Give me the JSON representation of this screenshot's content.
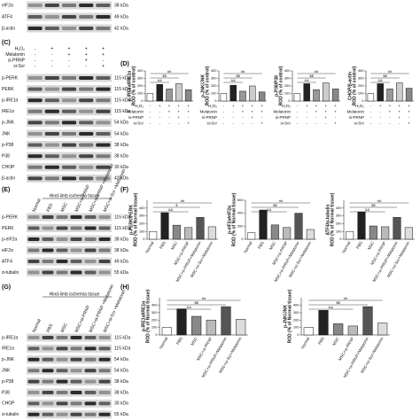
{
  "top_blot": {
    "rows": [
      {
        "name": "eIF2α",
        "kda": "38 kDa"
      },
      {
        "name": "ATF4",
        "kda": "49 kDa"
      },
      {
        "name": "β-actin",
        "kda": "42 kDa"
      }
    ]
  },
  "panel_c": {
    "label": "(C)",
    "header": [
      "H₂O₂",
      "Melatonin",
      "si-PRNP",
      "si-Scr"
    ],
    "signs": [
      [
        "-",
        "+",
        "+",
        "+",
        "+"
      ],
      [
        "-",
        "-",
        "+",
        "+",
        "+"
      ],
      [
        "-",
        "-",
        "-",
        "+",
        "-"
      ],
      [
        "-",
        "-",
        "-",
        "-",
        "+"
      ]
    ],
    "rows": [
      {
        "name": "p-PERK",
        "kda": "115 kDa"
      },
      {
        "name": "PERK",
        "kda": "115 kDa"
      },
      {
        "name": "p-IRE1α",
        "kda": "115 kDa"
      },
      {
        "name": "IRE1α",
        "kda": "115 kDa"
      },
      {
        "name": "p-JNK",
        "kda": "54 kDa"
      },
      {
        "name": "JNK",
        "kda": "54 kDa"
      },
      {
        "name": "p-P38",
        "kda": "38 kDa"
      },
      {
        "name": "P38",
        "kda": "38 kDa"
      },
      {
        "name": "CHOP",
        "kda": "30 kDa"
      },
      {
        "name": "β-actin",
        "kda": "42 kDa"
      }
    ]
  },
  "panel_d": {
    "label": "(D)"
  },
  "panel_e": {
    "label": "(E)",
    "tissue": "Hind-limb ischemia tissue",
    "columns": [
      "Normal",
      "PBS",
      "MSC",
      "MSC+si-PRNP",
      "MSC+si-PRNP +Melatonin",
      "MSC+si-Scr +Melatonin"
    ],
    "rows": [
      {
        "name": "p-PERK",
        "kda": "115 kDa"
      },
      {
        "name": "PERK",
        "kda": "115 kDa"
      },
      {
        "name": "p-eIF2α",
        "kda": "38 kDa"
      },
      {
        "name": "eIF2α",
        "kda": "38 kDa"
      },
      {
        "name": "ATF4",
        "kda": "49 kDa"
      },
      {
        "name": "α-tubulin",
        "kda": "55 kDa"
      }
    ]
  },
  "panel_f": {
    "label": "(F)"
  },
  "panel_g": {
    "label": "(G)",
    "tissue": "Hind-limb ischemia tissue",
    "columns": [
      "Normal",
      "PBS",
      "MSC",
      "MSC+si-PRNP",
      "MSC+si-PRNP +Melatonin",
      "MSC+si-Scr +Melatonin"
    ],
    "rows": [
      {
        "name": "p-IRE1α",
        "kda": "115 kDa"
      },
      {
        "name": "IRE1α",
        "kda": "115 kDa"
      },
      {
        "name": "p-JNK",
        "kda": "54 kDa"
      },
      {
        "name": "JNK",
        "kda": "54 kDa"
      },
      {
        "name": "p-P38",
        "kda": "38 kDa"
      },
      {
        "name": "P38",
        "kda": "38 kDa"
      },
      {
        "name": "CHOP",
        "kda": "30 kDa"
      },
      {
        "name": "α-tubulin",
        "kda": "55 kDa"
      }
    ]
  },
  "panel_h": {
    "label": "(H)"
  },
  "chart_data": [
    {
      "type": "bar",
      "ylabel": [
        "p-IRE1α/IRE1α",
        "ROD (% of control)"
      ],
      "categories": [
        null,
        null,
        null,
        null,
        null
      ],
      "values": [
        100,
        220,
        160,
        230,
        150
      ],
      "colors": [
        "#ffffff",
        "#222222",
        "#999999",
        "#cccccc",
        "#888888"
      ],
      "ylim": [
        0,
        400
      ],
      "yticks": [
        0,
        100,
        200,
        300,
        400
      ],
      "annotations": [
        "##",
        "$$",
        "&&"
      ]
    },
    {
      "type": "bar",
      "ylabel": [
        "p-JNK/JNK",
        "ROD (% of control)"
      ],
      "categories": [
        null,
        null,
        null,
        null,
        null
      ],
      "values": [
        100,
        210,
        130,
        200,
        120
      ],
      "colors": [
        "#ffffff",
        "#222222",
        "#999999",
        "#cccccc",
        "#888888"
      ],
      "ylim": [
        0,
        400
      ],
      "yticks": [
        0,
        100,
        200,
        300,
        400
      ],
      "annotations": [
        "##",
        "$$",
        "&&"
      ]
    },
    {
      "type": "bar",
      "ylabel": [
        "p-P38/P38",
        "ROD (% of control)"
      ],
      "categories": [
        null,
        null,
        null,
        null,
        null
      ],
      "values": [
        100,
        230,
        150,
        240,
        160
      ],
      "colors": [
        "#ffffff",
        "#222222",
        "#999999",
        "#cccccc",
        "#888888"
      ],
      "ylim": [
        0,
        400
      ],
      "yticks": [
        0,
        100,
        200,
        300,
        400
      ],
      "annotations": [
        "##",
        "$$",
        "&&"
      ]
    },
    {
      "type": "bar",
      "ylabel": [
        "CHOP/β-actin",
        "ROD (% of control)"
      ],
      "categories": [
        null,
        null,
        null,
        null,
        null
      ],
      "values": [
        100,
        230,
        160,
        240,
        170
      ],
      "colors": [
        "#ffffff",
        "#222222",
        "#999999",
        "#cccccc",
        "#888888"
      ],
      "ylim": [
        0,
        400
      ],
      "yticks": [
        0,
        100,
        200,
        300,
        400
      ],
      "annotations": [
        "##",
        "$$",
        "&&"
      ]
    },
    {
      "type": "bar",
      "ylabel": [
        "p-PERK/PERK",
        "ROD (% of Normal tissue)"
      ],
      "categories": [
        "Normal",
        "PBS",
        "MSC",
        "MSC+si-PRNP",
        "MSC+si-PRNP+Melatonin",
        "MSC+si-Scr+Melatonin"
      ],
      "values": [
        100,
        340,
        180,
        150,
        280,
        160
      ],
      "colors": [
        "#ffffff",
        "#222222",
        "#888888",
        "#bbbbbb",
        "#555555",
        "#dddddd"
      ],
      "ylim": [
        0,
        500
      ],
      "yticks": [
        0,
        100,
        200,
        300,
        400
      ],
      "annotations": [
        "##",
        "$",
        "&&"
      ]
    },
    {
      "type": "bar",
      "ylabel": [
        "p-eIF2α/eIF2α",
        "ROD (% of Normal tissue)"
      ],
      "categories": [
        "Normal",
        "PBS",
        "MSC",
        "MSC+si-PRNP",
        "MSC+si-PRNP+Melatonin",
        "MSC+si-Scr+Melatonin"
      ],
      "values": [
        100,
        450,
        220,
        180,
        400,
        150
      ],
      "colors": [
        "#ffffff",
        "#222222",
        "#888888",
        "#bbbbbb",
        "#555555",
        "#dddddd"
      ],
      "ylim": [
        0,
        600
      ],
      "yticks": [
        0,
        200,
        400,
        600
      ],
      "annotations": [
        "##",
        "$$",
        "&&"
      ]
    },
    {
      "type": "bar",
      "ylabel": [
        "ATF4/α-tubulin",
        "ROD (% of Normal tissue)"
      ],
      "categories": [
        "Normal",
        "PBS",
        "MSC",
        "MSC+si-PRNP",
        "MSC+si-PRNP+Melatonin",
        "MSC+si-Scr+Melatonin"
      ],
      "values": [
        100,
        350,
        170,
        160,
        280,
        150
      ],
      "colors": [
        "#ffffff",
        "#222222",
        "#888888",
        "#bbbbbb",
        "#555555",
        "#dddddd"
      ],
      "ylim": [
        0,
        500
      ],
      "yticks": [
        0,
        100,
        200,
        300,
        400
      ],
      "annotations": [
        "##",
        "$$",
        "&&"
      ]
    },
    {
      "type": "bar",
      "ylabel": [
        "p-IRE1α/IRE1α",
        "ROD (% of Normal tissue)"
      ],
      "categories": [
        "Normal",
        "PBS",
        "MSC",
        "MSC+si-PRNP",
        "MSC+si-PRNP+Melatonin",
        "MSC+si-Scr+Melatonin"
      ],
      "values": [
        100,
        350,
        250,
        200,
        380,
        210
      ],
      "colors": [
        "#ffffff",
        "#222222",
        "#888888",
        "#bbbbbb",
        "#555555",
        "#dddddd"
      ],
      "ylim": [
        0,
        500
      ],
      "yticks": [
        0,
        100,
        200,
        300,
        400
      ],
      "annotations": [
        "##",
        "$$",
        "&&"
      ]
    },
    {
      "type": "bar",
      "ylabel": [
        "p-JNK/JNK",
        "ROD (% of Normal tissue)"
      ],
      "categories": [
        "Normal",
        "PBS",
        "MSC",
        "MSC+si-PRNP",
        "MSC+si-PRNP+Melatonin",
        "MSC+si-Scr+Melatonin"
      ],
      "values": [
        100,
        330,
        150,
        120,
        380,
        160
      ],
      "colors": [
        "#ffffff",
        "#222222",
        "#888888",
        "#bbbbbb",
        "#555555",
        "#dddddd"
      ],
      "ylim": [
        0,
        500
      ],
      "yticks": [
        0,
        100,
        200,
        300,
        400
      ],
      "annotations": [
        "##",
        "$$",
        "&&"
      ]
    }
  ]
}
